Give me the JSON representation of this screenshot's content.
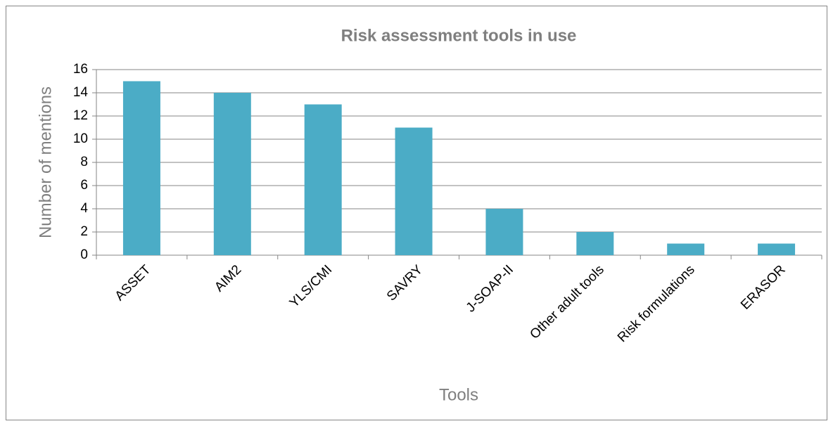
{
  "chart_data": {
    "type": "bar",
    "title": "Risk assessment tools in use",
    "x_label": "Tools",
    "y_label": "Number of mentions",
    "categories": [
      "ASSET",
      "AIM2",
      "YLS/CMI",
      "SAVRY",
      "J-SOAP-II",
      "Other adult tools",
      "Risk formulations",
      "ERASOR"
    ],
    "values": [
      15,
      14,
      13,
      11,
      4,
      2,
      1,
      1
    ],
    "color": "#4bacc6",
    "ylim": [
      0,
      16
    ],
    "yticks": [
      0,
      2,
      4,
      6,
      8,
      10,
      12,
      14,
      16
    ],
    "grid": true
  }
}
